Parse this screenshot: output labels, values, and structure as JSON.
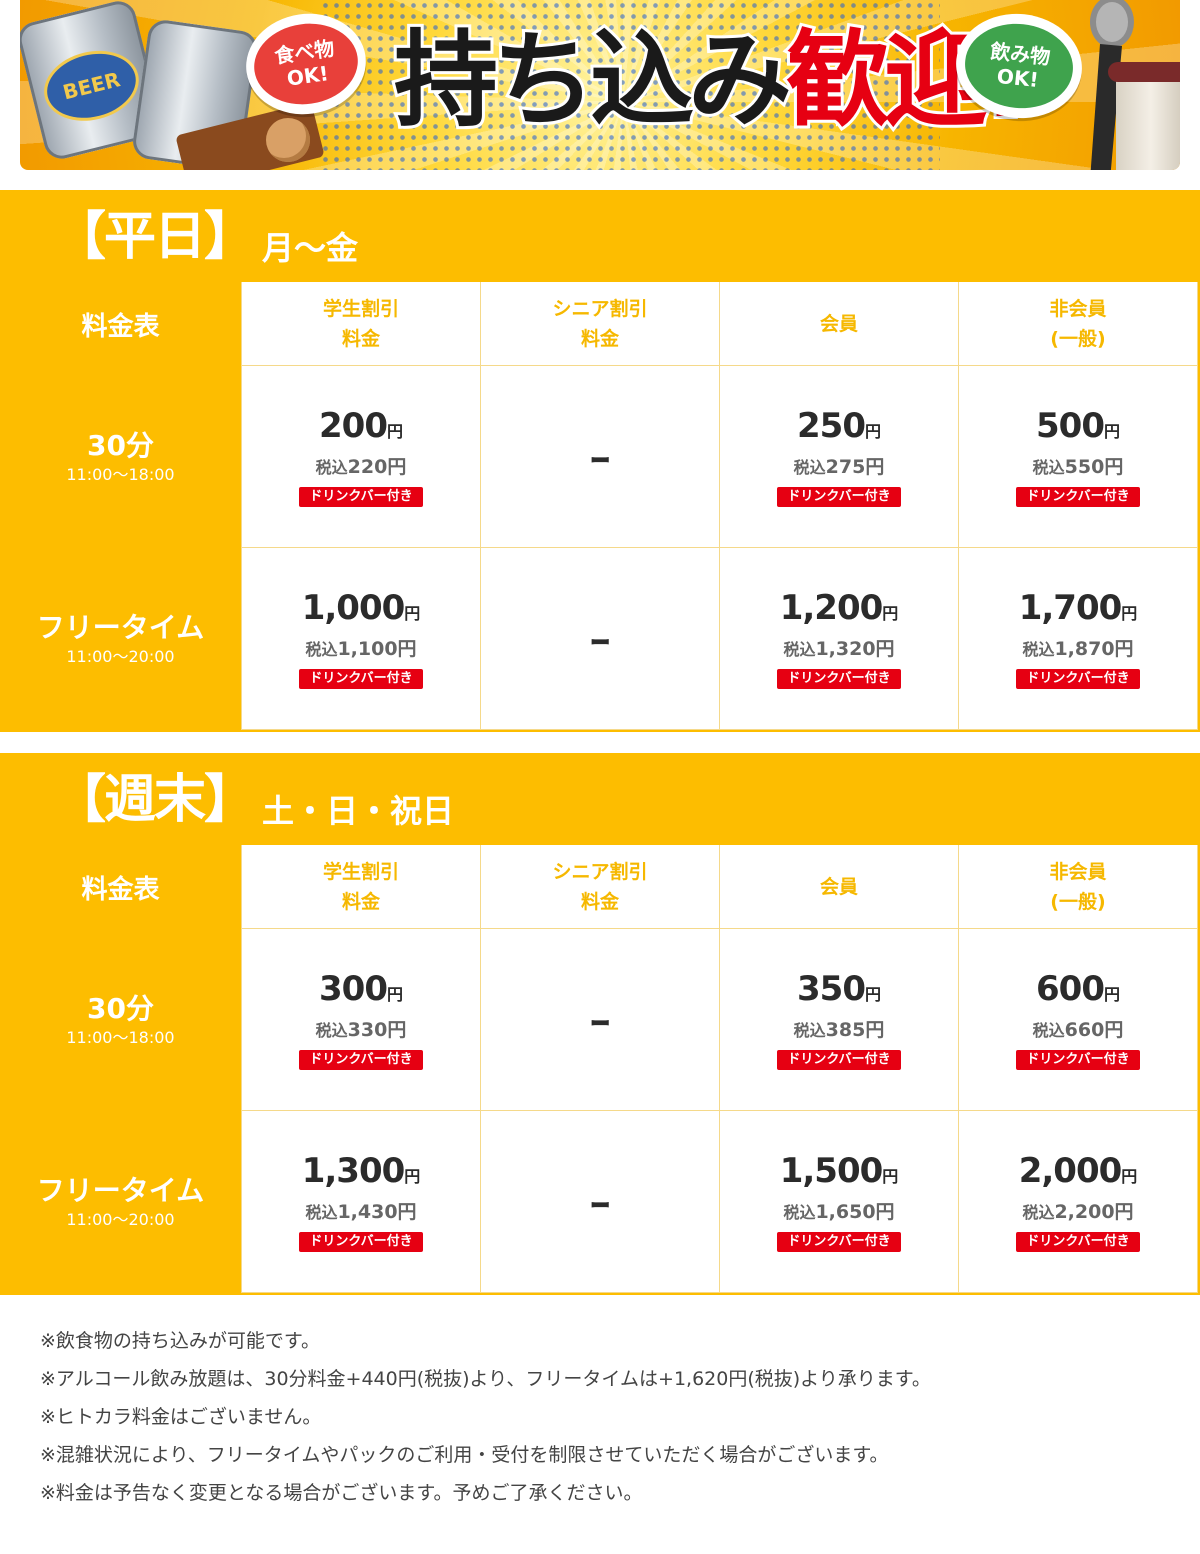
{
  "banner": {
    "headline_black": "持ち込み",
    "headline_red": "歓迎!",
    "bubble_food": "食べ物\nOK!",
    "bubble_drink": "飲み物\nOK!",
    "can_label": "BEER",
    "colors": {
      "accent": "#fdbd00",
      "red": "#e60012",
      "green": "#3fa34d"
    }
  },
  "weekday": {
    "title": "【平日】",
    "days": "月〜金",
    "table_label": "料金表",
    "columns": [
      "学生割引\n料金",
      "シニア割引\n料金",
      "会員",
      "非会員\n(一般)"
    ],
    "rows": [
      {
        "label": "30分",
        "time": "11:00〜18:00",
        "cells": [
          {
            "price": "200",
            "yen": "円",
            "tax_pre": "税込",
            "tax": "220円",
            "badge": "ドリンクバー付き"
          },
          {
            "dash": "ｰ"
          },
          {
            "price": "250",
            "yen": "円",
            "tax_pre": "税込",
            "tax": "275円",
            "badge": "ドリンクバー付き"
          },
          {
            "price": "500",
            "yen": "円",
            "tax_pre": "税込",
            "tax": "550円",
            "badge": "ドリンクバー付き"
          }
        ]
      },
      {
        "label": "フリータイム",
        "time": "11:00〜20:00",
        "cells": [
          {
            "price": "1,000",
            "yen": "円",
            "tax_pre": "税込",
            "tax": "1,100円",
            "badge": "ドリンクバー付き"
          },
          {
            "dash": "ｰ"
          },
          {
            "price": "1,200",
            "yen": "円",
            "tax_pre": "税込",
            "tax": "1,320円",
            "badge": "ドリンクバー付き"
          },
          {
            "price": "1,700",
            "yen": "円",
            "tax_pre": "税込",
            "tax": "1,870円",
            "badge": "ドリンクバー付き"
          }
        ]
      }
    ]
  },
  "weekend": {
    "title": "【週末】",
    "days": "土・日・祝日",
    "table_label": "料金表",
    "columns": [
      "学生割引\n料金",
      "シニア割引\n料金",
      "会員",
      "非会員\n(一般)"
    ],
    "rows": [
      {
        "label": "30分",
        "time": "11:00〜18:00",
        "cells": [
          {
            "price": "300",
            "yen": "円",
            "tax_pre": "税込",
            "tax": "330円",
            "badge": "ドリンクバー付き"
          },
          {
            "dash": "ｰ"
          },
          {
            "price": "350",
            "yen": "円",
            "tax_pre": "税込",
            "tax": "385円",
            "badge": "ドリンクバー付き"
          },
          {
            "price": "600",
            "yen": "円",
            "tax_pre": "税込",
            "tax": "660円",
            "badge": "ドリンクバー付き"
          }
        ]
      },
      {
        "label": "フリータイム",
        "time": "11:00〜20:00",
        "cells": [
          {
            "price": "1,300",
            "yen": "円",
            "tax_pre": "税込",
            "tax": "1,430円",
            "badge": "ドリンクバー付き"
          },
          {
            "dash": "ｰ"
          },
          {
            "price": "1,500",
            "yen": "円",
            "tax_pre": "税込",
            "tax": "1,650円",
            "badge": "ドリンクバー付き"
          },
          {
            "price": "2,000",
            "yen": "円",
            "tax_pre": "税込",
            "tax": "2,200円",
            "badge": "ドリンクバー付き"
          }
        ]
      }
    ]
  },
  "notes": [
    "※飲食物の持ち込みが可能です。",
    "※アルコール飲み放題は、30分料金+440円(税抜)より、フリータイムは+1,620円(税抜)より承ります。",
    "※ヒトカラ料金はございません。",
    "※混雑状況により、フリータイムやパックのご利用・受付を制限させていただく場合がございます。",
    "※料金は予告なく変更となる場合がございます。予めご了承ください。"
  ]
}
